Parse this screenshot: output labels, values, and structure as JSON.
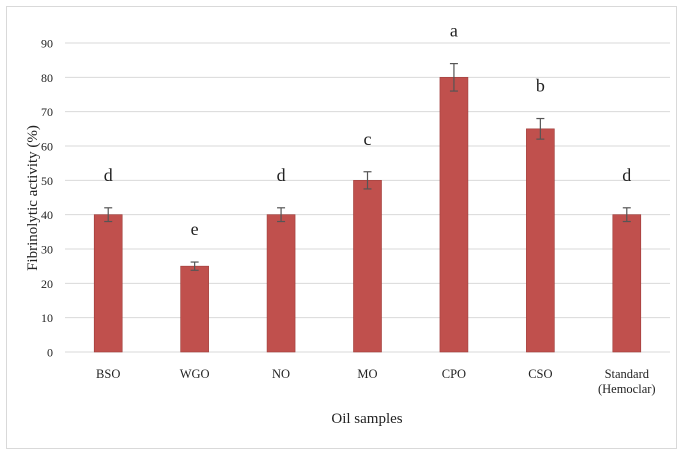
{
  "chart_data": {
    "type": "bar",
    "categories": [
      "BSO",
      "WGO",
      "NO",
      "MO",
      "CPO",
      "CSO",
      "Standard\n(Hemoclar)"
    ],
    "values": [
      40,
      25,
      40,
      50,
      80,
      65,
      40
    ],
    "errors": [
      2,
      1.2,
      2,
      2.5,
      4,
      3,
      2
    ],
    "significance_letters": [
      "d",
      "e",
      "d",
      "c",
      "a",
      "b",
      "d"
    ],
    "xlabel": "Oil samples",
    "ylabel": "Fibrinolytic activity (%)",
    "ylim": [
      0,
      90
    ],
    "yticks": [
      0,
      10,
      20,
      30,
      40,
      50,
      60,
      70,
      80,
      90
    ],
    "grid": true,
    "colors": {
      "bar": "#c0504d",
      "bar_edge": "#9e3b38",
      "grid": "#d9d9d9",
      "error": "#555555"
    }
  }
}
